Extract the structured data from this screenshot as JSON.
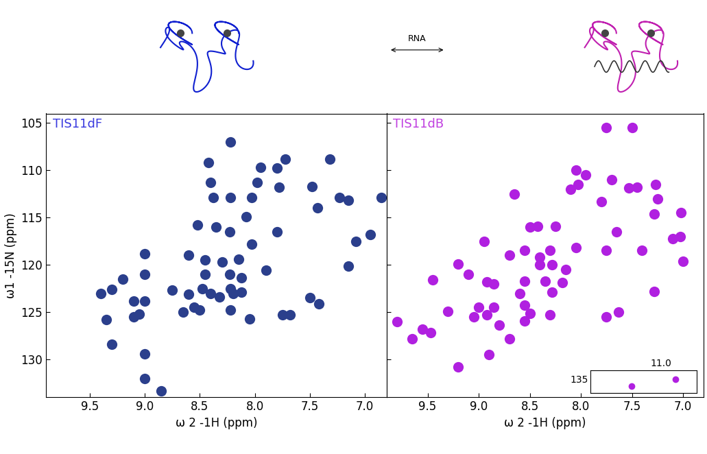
{
  "annotation": "RNA",
  "chart_data": [
    {
      "type": "scatter",
      "title": "TIS11dF",
      "x_label": "ω 2 -1H (ppm)",
      "y_label": "ω1 -15N (ppm)",
      "xlim": [
        9.9,
        6.8
      ],
      "ylim": [
        134,
        104
      ],
      "xticks": [
        9.5,
        9.0,
        8.5,
        8.0,
        7.5,
        7.0
      ],
      "yticks": [
        105,
        110,
        115,
        120,
        125,
        130
      ],
      "tick_labels": true,
      "color": "#2b3f8c",
      "marker": "o",
      "x": [
        8.22,
        8.42,
        7.95,
        7.8,
        7.72,
        7.32,
        8.4,
        7.98,
        7.78,
        7.48,
        7.23,
        7.15,
        6.85,
        8.38,
        8.22,
        8.03,
        7.43,
        8.52,
        8.08,
        7.8,
        8.35,
        8.23,
        8.03,
        7.08,
        6.95,
        9.0,
        8.6,
        8.45,
        8.3,
        8.15,
        7.15,
        9.2,
        9.0,
        8.45,
        8.23,
        8.12,
        7.9,
        9.3,
        8.75,
        8.48,
        8.22,
        8.4,
        8.12,
        9.4,
        9.1,
        9.0,
        8.6,
        8.32,
        8.2,
        9.1,
        9.05,
        8.65,
        8.55,
        8.5,
        8.22,
        8.05,
        7.75,
        7.68,
        7.5,
        7.42,
        9.35,
        9.3,
        9.0,
        9.0,
        8.85
      ],
      "values": [
        107.0,
        109.2,
        109.7,
        109.8,
        108.8,
        108.8,
        111.3,
        111.3,
        111.8,
        111.7,
        112.9,
        113.2,
        112.9,
        112.9,
        112.9,
        112.9,
        114.0,
        115.8,
        114.9,
        116.5,
        116.0,
        116.5,
        117.8,
        117.5,
        116.8,
        118.8,
        119.0,
        119.5,
        119.7,
        119.4,
        120.1,
        121.5,
        121.0,
        121.0,
        121.0,
        121.4,
        120.6,
        122.6,
        122.7,
        122.5,
        122.5,
        123.0,
        122.9,
        123.0,
        123.8,
        123.8,
        123.1,
        123.4,
        123.0,
        125.5,
        125.2,
        125.0,
        124.5,
        124.8,
        124.8,
        125.7,
        125.3,
        125.3,
        123.5,
        124.1,
        125.8,
        128.4,
        129.4,
        132.0,
        133.3
      ]
    },
    {
      "type": "scatter",
      "title": "TIS11dB",
      "x_label": "ω 2 -1H (ppm)",
      "xlim": [
        9.9,
        6.8
      ],
      "ylim": [
        134,
        104
      ],
      "xticks": [
        9.5,
        9.0,
        8.5,
        8.0,
        7.5,
        7.0
      ],
      "yticks": [
        105,
        110,
        115,
        120,
        125,
        130
      ],
      "tick_labels": "x",
      "color": "#b020e0",
      "marker": "o",
      "x": [
        7.75,
        7.5,
        8.05,
        7.95,
        8.03,
        7.7,
        7.45,
        7.53,
        7.27,
        8.1,
        7.8,
        8.65,
        7.25,
        7.28,
        7.02,
        8.5,
        8.42,
        8.25,
        7.65,
        7.1,
        7.03,
        8.95,
        8.55,
        8.7,
        8.4,
        8.3,
        8.05,
        7.75,
        7.4,
        7.0,
        9.2,
        8.4,
        8.28,
        8.15,
        9.45,
        9.1,
        8.92,
        8.85,
        8.55,
        8.35,
        8.18,
        8.6,
        8.28,
        9.8,
        9.55,
        9.47,
        9.65,
        9.3,
        9.05,
        8.92,
        8.85,
        9.0,
        8.8,
        8.5,
        8.3,
        8.55,
        7.75,
        7.63,
        7.28,
        9.2,
        8.9,
        8.55,
        8.7
      ],
      "values": [
        105.5,
        105.5,
        110.0,
        110.5,
        111.5,
        111.0,
        111.8,
        111.9,
        111.5,
        112.0,
        113.3,
        112.5,
        113.0,
        114.6,
        114.5,
        116.0,
        115.9,
        115.9,
        116.5,
        117.2,
        117.0,
        117.5,
        118.5,
        119.0,
        119.2,
        118.5,
        118.2,
        118.5,
        118.5,
        119.6,
        119.9,
        120.0,
        120.0,
        120.5,
        121.6,
        121.0,
        121.8,
        122.0,
        121.7,
        121.7,
        121.9,
        123.0,
        122.9,
        126.0,
        126.8,
        127.2,
        127.8,
        124.9,
        125.5,
        125.3,
        124.5,
        124.5,
        126.4,
        125.1,
        125.3,
        125.9,
        125.5,
        125.0,
        122.8,
        130.8,
        129.5,
        124.3,
        127.8
      ]
    },
    {
      "type": "scatter",
      "xlim": [
        11.6,
        10.7
      ],
      "ylim": [
        135.6,
        134.6
      ],
      "xticks": [
        11.0
      ],
      "yticks": [
        135
      ],
      "tick_labels": true,
      "color": "#b020e0",
      "marker": "o",
      "x": [
        11.25,
        10.88
      ],
      "values": [
        135.3,
        135.0
      ]
    }
  ]
}
